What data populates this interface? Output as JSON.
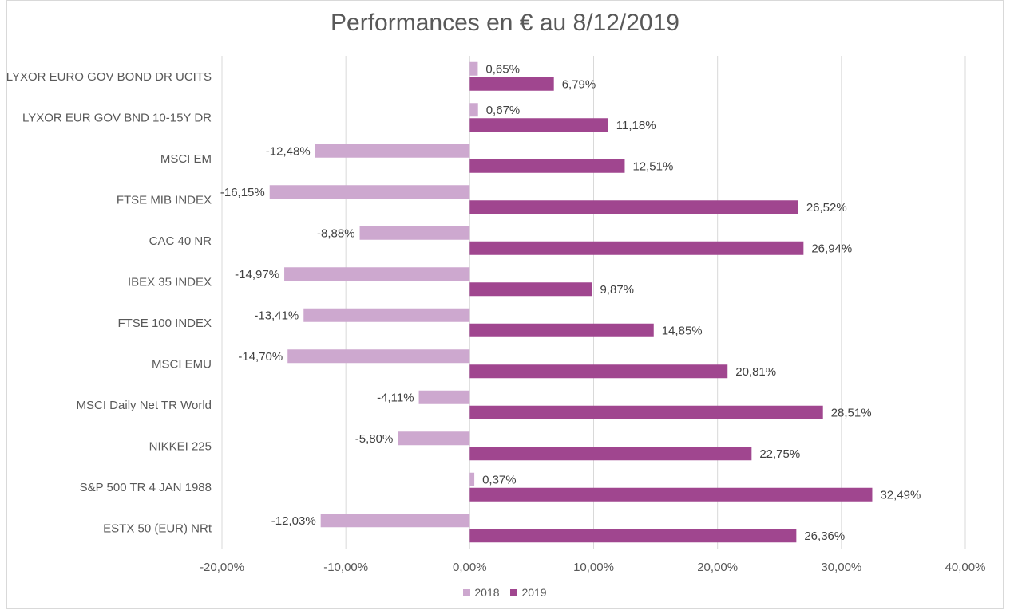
{
  "chart_data": {
    "type": "bar",
    "orientation": "horizontal",
    "title": "Performances en € au 8/12/2019",
    "categories": [
      "LYXOR EURO GOV BOND DR UCITS",
      "LYXOR EUR GOV BND 10-15Y DR",
      "MSCI EM",
      "FTSE MIB INDEX",
      "CAC 40 NR",
      "IBEX 35 INDEX",
      "FTSE 100 INDEX",
      "MSCI EMU",
      "MSCI Daily Net TR World",
      "NIKKEI 225",
      "S&P 500 TR 4 JAN 1988",
      "ESTX 50 (EUR) NRt"
    ],
    "series": [
      {
        "name": "2018",
        "color": "#cda8cf",
        "values": [
          0.65,
          0.67,
          -12.48,
          -16.15,
          -8.88,
          -14.97,
          -13.41,
          -14.7,
          -4.11,
          -5.8,
          0.37,
          -12.03
        ],
        "labels": [
          "0,65%",
          "0,67%",
          "-12,48%",
          "-16,15%",
          "-8,88%",
          "-14,97%",
          "-13,41%",
          "-14,70%",
          "-4,11%",
          "-5,80%",
          "0,37%",
          "-12,03%"
        ]
      },
      {
        "name": "2019",
        "color": "#a0468f",
        "values": [
          6.79,
          11.18,
          12.51,
          26.52,
          26.94,
          9.87,
          14.85,
          20.81,
          28.51,
          22.75,
          32.49,
          26.36
        ],
        "labels": [
          "6,79%",
          "11,18%",
          "12,51%",
          "26,52%",
          "26,94%",
          "9,87%",
          "14,85%",
          "20,81%",
          "28,51%",
          "22,75%",
          "32,49%",
          "26,36%"
        ]
      }
    ],
    "xlim": [
      -20,
      40
    ],
    "xticks": [
      -20,
      -10,
      0,
      10,
      20,
      30,
      40
    ],
    "xtick_labels": [
      "-20,00%",
      "-10,00%",
      "0,00%",
      "10,00%",
      "20,00%",
      "30,00%",
      "40,00%"
    ],
    "grid": true,
    "legend": "bottom"
  }
}
